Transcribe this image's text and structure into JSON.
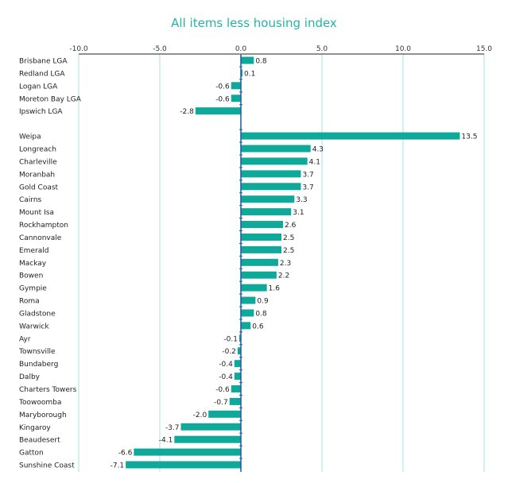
{
  "chart_data": {
    "type": "bar",
    "orientation": "horizontal",
    "title": "All items less housing index",
    "xlabel": "",
    "ylabel": "",
    "xlim": [
      -10,
      15
    ],
    "x_ticks": [
      "-10.0",
      "-5.0",
      "0.0",
      "5.0",
      "10.0",
      "15.0"
    ],
    "tick_values": [
      -10,
      -5,
      0,
      5,
      10,
      15
    ],
    "grid": true,
    "bar_color": "#0fa99b",
    "grid_color": "#a9dcea",
    "axis_color": "#1d5c96",
    "groups": [
      {
        "categories": [
          "Brisbane LGA",
          "Redland LGA",
          "Logan LGA",
          "Moreton Bay LGA",
          "Ipswich LGA"
        ],
        "values": [
          0.8,
          0.1,
          -0.6,
          -0.6,
          -2.8
        ],
        "labels": [
          "0.8",
          "0.1",
          "-0.6",
          "-0.6",
          "-2.8"
        ]
      },
      {
        "categories": [
          "Weipa",
          "Longreach",
          "Charleville",
          "Moranbah",
          "Gold Coast",
          "Cairns",
          "Mount Isa",
          "Rockhampton",
          "Cannonvale",
          "Emerald",
          "Mackay",
          "Bowen",
          "Gympie",
          "Roma",
          "Gladstone",
          "Warwick",
          "Ayr",
          "Townsville",
          "Bundaberg",
          "Dalby",
          "Charters Towers",
          "Toowoomba",
          "Maryborough",
          "Kingaroy",
          "Beaudesert",
          "Gatton",
          "Sunshine Coast"
        ],
        "values": [
          13.5,
          4.3,
          4.1,
          3.7,
          3.7,
          3.3,
          3.1,
          2.6,
          2.5,
          2.5,
          2.3,
          2.2,
          1.6,
          0.9,
          0.8,
          0.6,
          -0.1,
          -0.2,
          -0.4,
          -0.4,
          -0.6,
          -0.7,
          -2.0,
          -3.7,
          -4.1,
          -6.6,
          -7.1
        ],
        "labels": [
          "13.5",
          "4.3",
          "4.1",
          "3.7",
          "3.7",
          "3.3",
          "3.1",
          "2.6",
          "2.5",
          "2.5",
          "2.3",
          "2.2",
          "1.6",
          "0.9",
          "0.8",
          "0.6",
          "-0.1",
          "-0.2",
          "-0.4",
          "-0.4",
          "-0.6",
          "-0.7",
          "-2.0",
          "-3.7",
          "-4.1",
          "-6.6",
          "-7.1"
        ]
      }
    ]
  }
}
